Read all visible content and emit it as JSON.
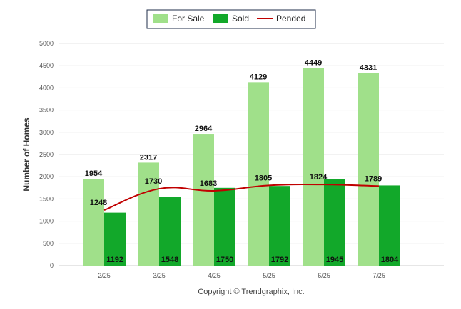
{
  "chart_data": {
    "type": "bar",
    "categories": [
      "2/25",
      "3/25",
      "4/25",
      "5/25",
      "6/25",
      "7/25"
    ],
    "series": [
      {
        "name": "For Sale",
        "kind": "bar",
        "color": "#a0e08a",
        "values": [
          1954,
          2317,
          2964,
          4129,
          4449,
          4331
        ]
      },
      {
        "name": "Sold",
        "kind": "bar",
        "color": "#12a82a",
        "values": [
          1192,
          1548,
          1750,
          1792,
          1945,
          1804
        ]
      },
      {
        "name": "Pended",
        "kind": "line",
        "color": "#c00000",
        "values": [
          1248,
          1730,
          1683,
          1805,
          1824,
          1789
        ]
      }
    ],
    "ylabel": "Number of Homes",
    "xlabel": "",
    "ylim": [
      0,
      5000
    ],
    "yticks": [
      0,
      500,
      1000,
      1500,
      2000,
      2500,
      3000,
      3500,
      4000,
      4500,
      5000
    ],
    "grid": true,
    "legend_position": "top-center"
  },
  "credit": "Copyright © Trendgraphix, Inc."
}
